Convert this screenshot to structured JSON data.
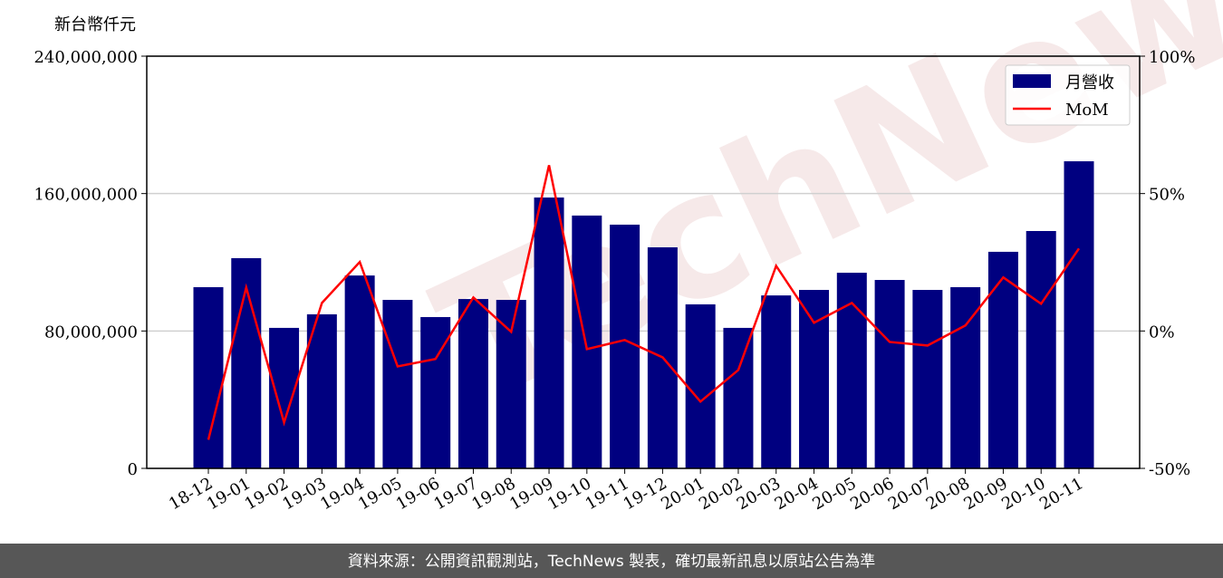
{
  "chart_data": {
    "type": "bar_line",
    "y_label": "新台幣仟元",
    "watermark": "TechNews",
    "footer": "資料來源：公開資訊觀測站，TechNews 製表，確切最新訊息以原站公告為準",
    "categories": [
      "18-12",
      "19-01",
      "19-02",
      "19-03",
      "19-04",
      "19-05",
      "19-06",
      "19-07",
      "19-08",
      "19-09",
      "19-10",
      "19-11",
      "19-12",
      "20-01",
      "20-02",
      "20-03",
      "20-04",
      "20-05",
      "20-06",
      "20-07",
      "20-08",
      "20-09",
      "20-10",
      "20-11"
    ],
    "series": [
      {
        "name": "月營收",
        "type": "bar",
        "color": "#000080",
        "values": [
          105500000,
          122400000,
          81800000,
          89700000,
          112300000,
          98100000,
          88100000,
          98600000,
          98100000,
          157700000,
          147200000,
          141900000,
          128700000,
          95500000,
          81800000,
          100700000,
          103900000,
          113900000,
          109700000,
          103900000,
          105500000,
          126100000,
          138200000,
          178800000
        ]
      },
      {
        "name": "MoM",
        "type": "line",
        "axis": "y2",
        "color": "#ff0000",
        "values": [
          -39.6,
          15.8,
          -33.3,
          10.2,
          25.1,
          -12.9,
          -10.2,
          12.2,
          -0.3,
          60.3,
          -6.6,
          -3.3,
          -9.6,
          -25.7,
          -14.2,
          23.7,
          3.0,
          10.2,
          -4.0,
          -5.3,
          2.0,
          19.5,
          9.9,
          30.0
        ]
      }
    ],
    "ylim": [
      0,
      240000000
    ],
    "yticks": [
      0,
      {
        "value": 80000000,
        "label": "80,000,000"
      },
      {
        "value": 160000000,
        "label": "160,000,000"
      },
      {
        "value": 240000000,
        "label": "240,000,000"
      }
    ],
    "y2lim": [
      -50,
      100
    ],
    "y2ticks": [
      {
        "value": -50,
        "label": "-50%"
      },
      {
        "value": 0,
        "label": "0%"
      },
      {
        "value": 50,
        "label": "50%"
      },
      {
        "value": 100,
        "label": "100%"
      }
    ],
    "grid": true,
    "legend": "upper right"
  }
}
